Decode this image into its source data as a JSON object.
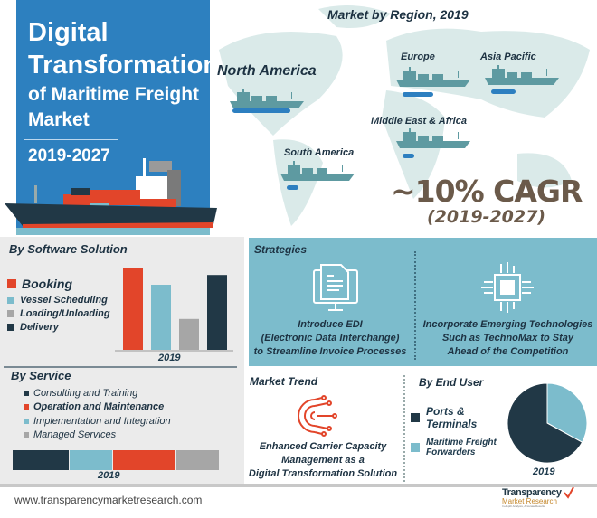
{
  "header": {
    "title_line1": "Digital",
    "title_line2": "Transformation",
    "title_line3": "of Maritime Freight",
    "title_line4": "Market",
    "period": "2019-2027"
  },
  "region": {
    "title": "Market by Region, 2019",
    "items": [
      {
        "label": "North America",
        "relative_share": 1.0
      },
      {
        "label": "Europe",
        "relative_share": 0.53
      },
      {
        "label": "Asia Pacific",
        "relative_share": 0.42
      },
      {
        "label": "Middle East & Africa",
        "relative_share": 0.2
      },
      {
        "label": "South America",
        "relative_share": 0.2
      }
    ],
    "cagr": "~10% CAGR",
    "cagr_period": "(2019-2027)"
  },
  "software": {
    "title": "By Software Solution",
    "year": "2019"
  },
  "service": {
    "title": "By Service",
    "year": "2019"
  },
  "strategies": {
    "title": "Strategies",
    "items": [
      {
        "line1": "Introduce EDI",
        "line2": "(Electronic Data Interchange)",
        "line3": "to Streamline Invoice Processes",
        "icon": "computer-document-icon"
      },
      {
        "line1": "Incorporate Emerging Technologies",
        "line2": "Such as TechnoMax to Stay",
        "line3": "Ahead of the Competition",
        "icon": "chip-icon"
      }
    ]
  },
  "trend": {
    "title": "Market Trend",
    "line1": "Enhanced Carrier Capacity",
    "line2": "Management as a",
    "line3": "Digital Transformation Solution",
    "icon": "gear-circuit-icon"
  },
  "end_user": {
    "title": "By End User",
    "year": "2019"
  },
  "footer": {
    "url": "www.transparencymarketresearch.com",
    "logo_line1": "Transparency",
    "logo_line2": "Market Research",
    "logo_tagline": "In-depth Analysis, Accurate Results"
  },
  "colors": {
    "blue": "#2d80bf",
    "teal": "#7cbccc",
    "orange": "#e2452a",
    "navy": "#213846",
    "gray": "#a6a6a6"
  },
  "chart_data": [
    {
      "type": "bar",
      "title": "By Software Solution",
      "categories": [
        "Booking",
        "Vessel Scheduling",
        "Loading/Unloading",
        "Delivery"
      ],
      "values": [
        100,
        80,
        38,
        92
      ],
      "colors": [
        "#e2452a",
        "#7cbccc",
        "#a6a6a6",
        "#213846"
      ],
      "xlabel": "2019",
      "legend": "left"
    },
    {
      "type": "bar",
      "subtype": "stacked-horizontal",
      "title": "By Service",
      "categories": [
        "Consulting and Training",
        "Implementation and Integration",
        "Operation and Maintenance",
        "Managed Services"
      ],
      "legend_order": [
        "Consulting and Training",
        "Operation and Maintenance",
        "Implementation and Integration",
        "Managed Services"
      ],
      "values": [
        27.5,
        21,
        30.5,
        21
      ],
      "colors": [
        "#213846",
        "#7cbccc",
        "#e2452a",
        "#a6a6a6"
      ],
      "xlabel": "2019"
    },
    {
      "type": "pie",
      "title": "By End User",
      "categories": [
        "Ports & Terminals",
        "Maritime Freight Forwarders"
      ],
      "values": [
        67,
        33
      ],
      "colors": [
        "#213846",
        "#7cbccc"
      ],
      "xlabel": "2019",
      "legend": "left"
    }
  ]
}
